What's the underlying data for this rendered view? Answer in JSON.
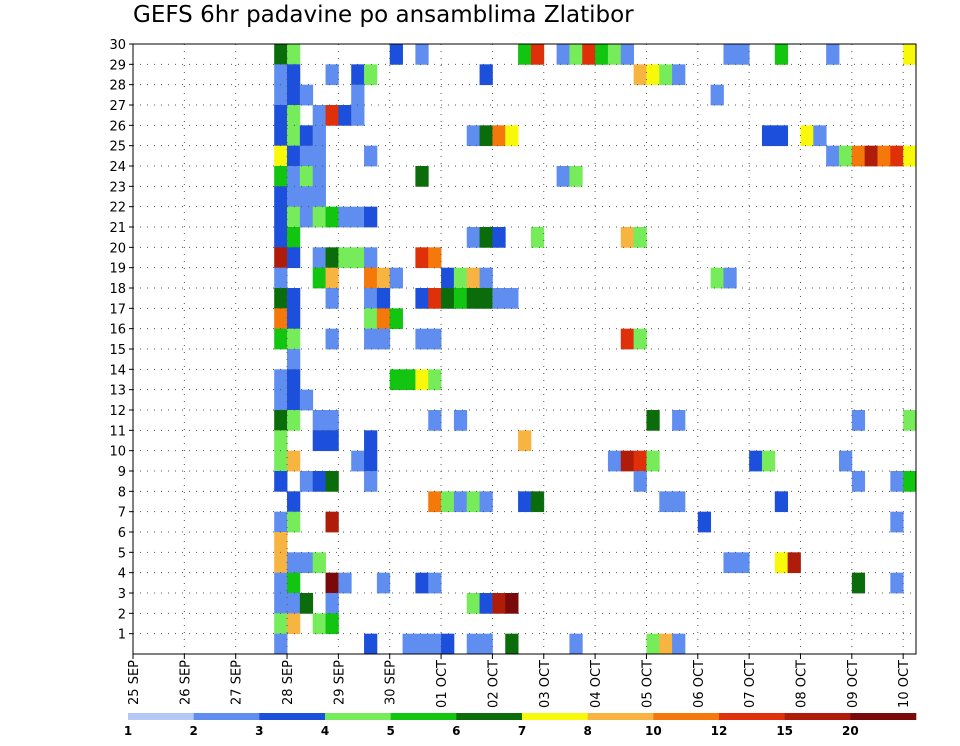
{
  "chart_data": {
    "type": "heatmap",
    "title": "GEFS 6hr padavine po ansamblima Zlatibor",
    "xlabel": "",
    "ylabel": "",
    "x_ticks": [
      "25 SEP",
      "26 SEP",
      "27 SEP",
      "28 SEP",
      "29 SEP",
      "30 SEP",
      "01 OCT",
      "02 OCT",
      "03 OCT",
      "04 OCT",
      "05 OCT",
      "06 OCT",
      "07 OCT",
      "08 OCT",
      "09 OCT",
      "10 OCT"
    ],
    "y_ticks": [
      "1",
      "2",
      "3",
      "4",
      "5",
      "6",
      "7",
      "8",
      "9",
      "10",
      "11",
      "12",
      "13",
      "14",
      "15",
      "16",
      "17",
      "18",
      "19",
      "20",
      "21",
      "22",
      "23",
      "24",
      "25",
      "26",
      "27",
      "28",
      "29",
      "30"
    ],
    "ylim": [
      0,
      30
    ],
    "time_step_hours": 6,
    "columns_per_day": 4,
    "num_columns": 61,
    "grid": "dotted",
    "legend": {
      "position": "bottom",
      "labels": [
        "1",
        "2",
        "3",
        "4",
        "5",
        "6",
        "7",
        "8",
        "10",
        "12",
        "15",
        "20"
      ],
      "colors": [
        "#b4c8f5",
        "#5f8ef0",
        "#1c4fdc",
        "#77ec5a",
        "#11c511",
        "#0a6c0a",
        "#f8f80a",
        "#f8b440",
        "#f4780a",
        "#e0300a",
        "#b01c0a",
        "#7a0a0a"
      ]
    },
    "cells": [
      [
        30,
        11,
        5
      ],
      [
        30,
        12,
        3
      ],
      [
        30,
        20,
        2
      ],
      [
        30,
        22,
        1
      ],
      [
        30,
        30,
        4
      ],
      [
        30,
        31,
        9
      ],
      [
        30,
        33,
        1
      ],
      [
        30,
        34,
        3
      ],
      [
        30,
        35,
        9
      ],
      [
        30,
        36,
        4
      ],
      [
        30,
        37,
        3
      ],
      [
        30,
        38,
        1
      ],
      [
        30,
        46,
        1
      ],
      [
        30,
        47,
        1
      ],
      [
        30,
        50,
        4
      ],
      [
        30,
        54,
        1
      ],
      [
        30,
        60,
        6
      ],
      [
        29,
        11,
        1
      ],
      [
        29,
        12,
        2
      ],
      [
        29,
        15,
        1
      ],
      [
        29,
        17,
        2
      ],
      [
        29,
        18,
        3
      ],
      [
        29,
        27,
        2
      ],
      [
        29,
        39,
        7
      ],
      [
        29,
        40,
        6
      ],
      [
        29,
        41,
        3
      ],
      [
        29,
        42,
        1
      ],
      [
        28,
        11,
        1
      ],
      [
        28,
        12,
        2
      ],
      [
        28,
        13,
        1
      ],
      [
        28,
        17,
        1
      ],
      [
        28,
        45,
        1
      ],
      [
        27,
        11,
        2
      ],
      [
        27,
        12,
        3
      ],
      [
        27,
        14,
        1
      ],
      [
        27,
        15,
        9
      ],
      [
        27,
        16,
        2
      ],
      [
        27,
        17,
        1
      ],
      [
        26,
        11,
        2
      ],
      [
        26,
        12,
        3
      ],
      [
        26,
        13,
        2
      ],
      [
        26,
        14,
        1
      ],
      [
        26,
        26,
        1
      ],
      [
        26,
        27,
        5
      ],
      [
        26,
        28,
        8
      ],
      [
        26,
        29,
        6
      ],
      [
        26,
        49,
        2
      ],
      [
        26,
        50,
        2
      ],
      [
        26,
        52,
        6
      ],
      [
        26,
        53,
        1
      ],
      [
        25,
        11,
        6
      ],
      [
        25,
        12,
        2
      ],
      [
        25,
        13,
        1
      ],
      [
        25,
        14,
        1
      ],
      [
        25,
        18,
        1
      ],
      [
        25,
        54,
        1
      ],
      [
        25,
        55,
        3
      ],
      [
        25,
        56,
        8
      ],
      [
        25,
        57,
        10
      ],
      [
        25,
        58,
        8
      ],
      [
        25,
        59,
        9
      ],
      [
        25,
        60,
        6
      ],
      [
        24,
        11,
        4
      ],
      [
        24,
        12,
        1
      ],
      [
        24,
        13,
        3
      ],
      [
        24,
        14,
        1
      ],
      [
        24,
        22,
        5
      ],
      [
        24,
        33,
        1
      ],
      [
        24,
        34,
        3
      ],
      [
        23,
        11,
        2
      ],
      [
        23,
        12,
        1
      ],
      [
        23,
        13,
        1
      ],
      [
        23,
        14,
        1
      ],
      [
        22,
        11,
        2
      ],
      [
        22,
        12,
        3
      ],
      [
        22,
        13,
        1
      ],
      [
        22,
        14,
        3
      ],
      [
        22,
        15,
        4
      ],
      [
        22,
        16,
        1
      ],
      [
        22,
        17,
        1
      ],
      [
        22,
        18,
        2
      ],
      [
        21,
        11,
        2
      ],
      [
        21,
        12,
        4
      ],
      [
        21,
        26,
        1
      ],
      [
        21,
        27,
        5
      ],
      [
        21,
        28,
        2
      ],
      [
        21,
        31,
        3
      ],
      [
        21,
        38,
        7
      ],
      [
        21,
        39,
        3
      ],
      [
        20,
        11,
        10
      ],
      [
        20,
        12,
        2
      ],
      [
        20,
        14,
        1
      ],
      [
        20,
        15,
        5
      ],
      [
        20,
        16,
        3
      ],
      [
        20,
        17,
        3
      ],
      [
        20,
        18,
        1
      ],
      [
        20,
        22,
        9
      ],
      [
        20,
        23,
        8
      ],
      [
        19,
        11,
        1
      ],
      [
        19,
        14,
        4
      ],
      [
        19,
        15,
        7
      ],
      [
        19,
        18,
        8
      ],
      [
        19,
        19,
        7
      ],
      [
        19,
        20,
        1
      ],
      [
        19,
        24,
        2
      ],
      [
        19,
        25,
        3
      ],
      [
        19,
        26,
        7
      ],
      [
        19,
        27,
        1
      ],
      [
        19,
        45,
        3
      ],
      [
        19,
        46,
        1
      ],
      [
        18,
        11,
        5
      ],
      [
        18,
        12,
        2
      ],
      [
        18,
        15,
        1
      ],
      [
        18,
        18,
        1
      ],
      [
        18,
        19,
        2
      ],
      [
        18,
        22,
        2
      ],
      [
        18,
        23,
        9
      ],
      [
        18,
        24,
        5
      ],
      [
        18,
        25,
        4
      ],
      [
        18,
        26,
        5
      ],
      [
        18,
        27,
        5
      ],
      [
        18,
        28,
        1
      ],
      [
        18,
        29,
        1
      ],
      [
        17,
        11,
        8
      ],
      [
        17,
        12,
        2
      ],
      [
        17,
        18,
        3
      ],
      [
        17,
        19,
        8
      ],
      [
        17,
        20,
        4
      ],
      [
        16,
        11,
        4
      ],
      [
        16,
        12,
        3
      ],
      [
        16,
        15,
        1
      ],
      [
        16,
        18,
        1
      ],
      [
        16,
        19,
        1
      ],
      [
        16,
        22,
        1
      ],
      [
        16,
        23,
        1
      ],
      [
        16,
        38,
        9
      ],
      [
        16,
        39,
        3
      ],
      [
        15,
        12,
        1
      ],
      [
        14,
        11,
        1
      ],
      [
        14,
        12,
        2
      ],
      [
        14,
        20,
        4
      ],
      [
        14,
        21,
        4
      ],
      [
        14,
        22,
        6
      ],
      [
        14,
        23,
        3
      ],
      [
        13,
        11,
        1
      ],
      [
        13,
        12,
        2
      ],
      [
        13,
        13,
        1
      ],
      [
        12,
        11,
        5
      ],
      [
        12,
        12,
        3
      ],
      [
        12,
        14,
        1
      ],
      [
        12,
        15,
        1
      ],
      [
        12,
        23,
        1
      ],
      [
        12,
        25,
        1
      ],
      [
        12,
        40,
        5
      ],
      [
        12,
        42,
        1
      ],
      [
        12,
        56,
        1
      ],
      [
        12,
        60,
        3
      ],
      [
        11,
        11,
        3
      ],
      [
        11,
        14,
        2
      ],
      [
        11,
        15,
        2
      ],
      [
        11,
        18,
        2
      ],
      [
        11,
        30,
        7
      ],
      [
        10,
        11,
        3
      ],
      [
        10,
        12,
        7
      ],
      [
        10,
        17,
        1
      ],
      [
        10,
        18,
        2
      ],
      [
        10,
        37,
        1
      ],
      [
        10,
        38,
        10
      ],
      [
        10,
        39,
        9
      ],
      [
        10,
        40,
        3
      ],
      [
        10,
        48,
        2
      ],
      [
        10,
        49,
        3
      ],
      [
        10,
        55,
        1
      ],
      [
        9,
        11,
        2
      ],
      [
        9,
        13,
        1
      ],
      [
        9,
        14,
        2
      ],
      [
        9,
        15,
        5
      ],
      [
        9,
        18,
        1
      ],
      [
        9,
        39,
        1
      ],
      [
        9,
        56,
        1
      ],
      [
        9,
        59,
        1
      ],
      [
        9,
        60,
        4
      ],
      [
        8,
        12,
        2
      ],
      [
        8,
        23,
        8
      ],
      [
        8,
        24,
        3
      ],
      [
        8,
        25,
        1
      ],
      [
        8,
        26,
        3
      ],
      [
        8,
        27,
        1
      ],
      [
        8,
        30,
        2
      ],
      [
        8,
        31,
        5
      ],
      [
        8,
        41,
        1
      ],
      [
        8,
        42,
        1
      ],
      [
        8,
        50,
        2
      ],
      [
        7,
        11,
        1
      ],
      [
        7,
        12,
        3
      ],
      [
        7,
        15,
        10
      ],
      [
        7,
        44,
        2
      ],
      [
        7,
        59,
        1
      ],
      [
        6,
        11,
        7
      ],
      [
        5,
        11,
        7
      ],
      [
        5,
        12,
        1
      ],
      [
        5,
        13,
        1
      ],
      [
        5,
        14,
        3
      ],
      [
        5,
        46,
        1
      ],
      [
        5,
        47,
        1
      ],
      [
        5,
        50,
        6
      ],
      [
        5,
        51,
        10
      ],
      [
        4,
        11,
        1
      ],
      [
        4,
        12,
        4
      ],
      [
        4,
        15,
        11
      ],
      [
        4,
        16,
        1
      ],
      [
        4,
        19,
        1
      ],
      [
        4,
        22,
        2
      ],
      [
        4,
        23,
        1
      ],
      [
        4,
        56,
        5
      ],
      [
        4,
        59,
        1
      ],
      [
        3,
        11,
        1
      ],
      [
        3,
        12,
        1
      ],
      [
        3,
        13,
        5
      ],
      [
        3,
        15,
        1
      ],
      [
        3,
        26,
        3
      ],
      [
        3,
        27,
        2
      ],
      [
        3,
        28,
        10
      ],
      [
        3,
        29,
        11
      ],
      [
        2,
        11,
        3
      ],
      [
        2,
        12,
        7
      ],
      [
        2,
        14,
        3
      ],
      [
        2,
        15,
        4
      ],
      [
        1,
        11,
        1
      ],
      [
        1,
        18,
        2
      ],
      [
        1,
        21,
        1
      ],
      [
        1,
        22,
        1
      ],
      [
        1,
        23,
        1
      ],
      [
        1,
        24,
        2
      ],
      [
        1,
        26,
        1
      ],
      [
        1,
        27,
        1
      ],
      [
        1,
        29,
        5
      ],
      [
        1,
        34,
        1
      ],
      [
        1,
        40,
        3
      ],
      [
        1,
        41,
        7
      ],
      [
        1,
        42,
        1
      ]
    ]
  }
}
